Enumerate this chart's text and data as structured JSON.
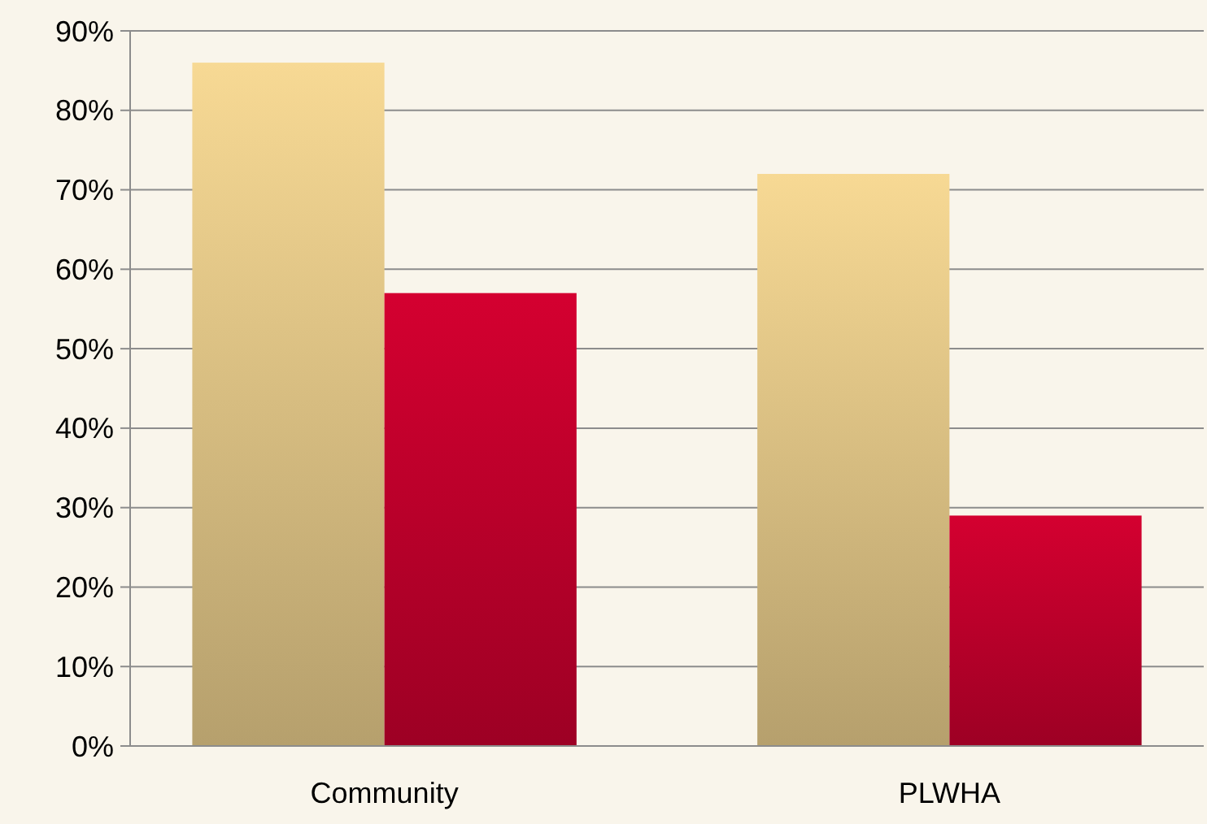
{
  "chart_data": {
    "type": "bar",
    "categories": [
      "Community",
      "PLWHA"
    ],
    "series": [
      {
        "color": "#d6bc80",
        "values": [
          86,
          72
        ]
      },
      {
        "color": "#b8002a",
        "values": [
          57,
          29
        ]
      }
    ],
    "ylim": [
      0,
      90
    ],
    "yticks": [
      {
        "value": 0,
        "label": "0%"
      },
      {
        "value": 10,
        "label": "10%"
      },
      {
        "value": 20,
        "label": "20%"
      },
      {
        "value": 30,
        "label": "30%"
      },
      {
        "value": 40,
        "label": "40%"
      },
      {
        "value": 50,
        "label": "50%"
      },
      {
        "value": 60,
        "label": "60%"
      },
      {
        "value": 70,
        "label": "70%"
      },
      {
        "value": 80,
        "label": "80%"
      },
      {
        "value": 90,
        "label": "90%"
      }
    ],
    "grid": "y"
  }
}
